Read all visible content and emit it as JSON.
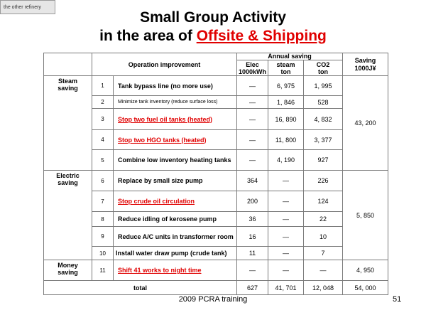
{
  "tag": "the other refinery",
  "title": {
    "line1": "Small Group Activity",
    "line2_prefix": "in the area of ",
    "line2_highlight": "Offsite & Shipping"
  },
  "table": {
    "headers": {
      "operation": "Operation improvement",
      "annual_saving": "Annual saving",
      "elec": "Elec",
      "elec_unit": "1000kWh",
      "steam": "steam",
      "steam_unit": "ton",
      "co2": "CO2",
      "co2_unit": "ton",
      "saving": "Saving",
      "saving_unit": "1000J¥"
    },
    "categories": {
      "steam": [
        "Steam",
        "saving"
      ],
      "electric": [
        "Electric",
        "saving"
      ],
      "money": [
        "Money",
        "saving"
      ]
    },
    "rows": [
      {
        "no": "1",
        "desc": "Tank bypass line (no more use)",
        "elec": "—",
        "steam": "6, 975",
        "co2": "1, 995"
      },
      {
        "no": "2",
        "desc": "Minimize tank inventory (reduce surface loss)",
        "elec": "—",
        "steam": "1, 846",
        "co2": "528"
      },
      {
        "no": "3",
        "desc": "Stop two fuel oil tanks (heated)",
        "elec": "—",
        "steam": "16, 890",
        "co2": "4, 832"
      },
      {
        "no": "4",
        "desc": "Stop two HGO tanks (heated)",
        "elec": "—",
        "steam": "11, 800",
        "co2": "3, 377"
      },
      {
        "no": "5",
        "desc": "Combine low inventory  heating tanks",
        "elec": "—",
        "steam": "4, 190",
        "co2": "927"
      },
      {
        "no": "6",
        "desc": "Replace by small size pump",
        "elec": "364",
        "steam": "—",
        "co2": "226"
      },
      {
        "no": "7",
        "desc": "Stop crude oil circulation",
        "elec": "200",
        "steam": "—",
        "co2": "124"
      },
      {
        "no": "8",
        "desc": "Reduce idling of kerosene pump",
        "elec": "36",
        "steam": "—",
        "co2": "22"
      },
      {
        "no": "9",
        "desc": "Reduce A/C units in transformer room",
        "elec": "16",
        "steam": "—",
        "co2": "10"
      },
      {
        "no": "10",
        "desc": "Install water draw pump (crude tank)",
        "elec": "11",
        "steam": "—",
        "co2": "7"
      },
      {
        "no": "11",
        "desc": "Shift 41 works to night time",
        "elec": "—",
        "steam": "—",
        "co2": "—"
      }
    ],
    "group_savings": {
      "steam": "43, 200",
      "electric": "5, 850",
      "money": "4, 950"
    },
    "total": {
      "label": "total",
      "elec": "627",
      "steam": "41, 701",
      "co2": "12, 048",
      "saving": "54, 000"
    }
  },
  "footer": {
    "center": "2009 PCRA training",
    "page": "51"
  }
}
